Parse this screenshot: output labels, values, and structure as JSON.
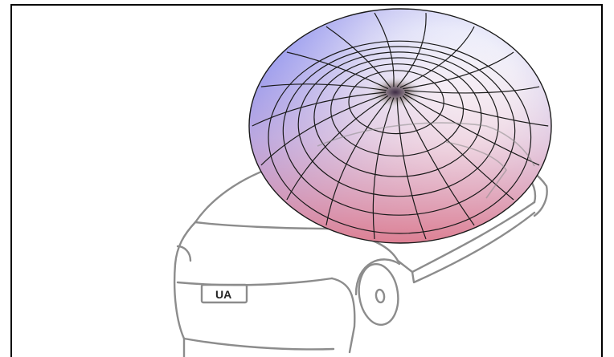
{
  "figure": {
    "license_plate_text": "UA"
  },
  "colors": {
    "frame": "#000000",
    "car_outline": "#8c8c8c",
    "mesh_lines": "#1a1a1a",
    "pattern_blue": "#7f86f2",
    "pattern_light": "#f4f1f6",
    "pattern_pink": "#e07e8e"
  },
  "pattern": {
    "shape": "toroidal-radiation-pattern",
    "meridian_lines": 18,
    "latitude_rings": 6
  }
}
